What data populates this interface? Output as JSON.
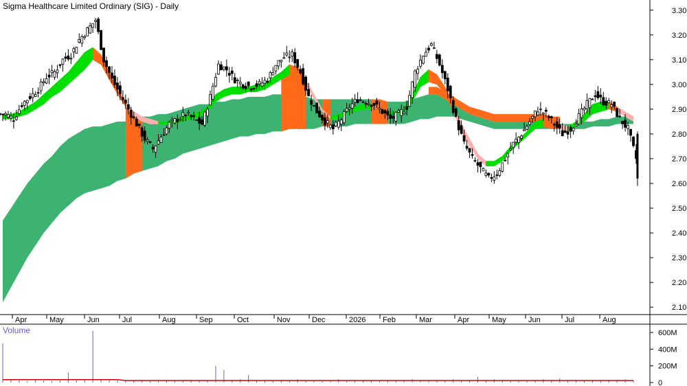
{
  "chart_data": {
    "type": "candlestick",
    "title": "Sigma Healthcare Limited Ordinary (SIG) - Daily",
    "price_axis": {
      "ylim": [
        2.07,
        3.33
      ],
      "ticks": [
        "3.30",
        "3.20",
        "3.10",
        "3.00",
        "2.90",
        "2.80",
        "2.70",
        "2.60",
        "2.50",
        "2.40",
        "2.30",
        "2.20",
        "2.10"
      ],
      "tick_values": [
        3.3,
        3.2,
        3.1,
        3.0,
        2.9,
        2.8,
        2.7,
        2.6,
        2.5,
        2.4,
        2.3,
        2.2,
        2.1
      ]
    },
    "x_axis": {
      "labels": [
        "Apr",
        "May",
        "Jun",
        "Jul",
        "Aug",
        "Sep",
        "Oct",
        "Nov",
        "Dec",
        "2026",
        "Feb",
        "Mar",
        "Apr",
        "May",
        "Jun",
        "Jul",
        "Aug"
      ]
    },
    "price_series": {
      "name": "Close",
      "values": [
        2.88,
        2.86,
        2.92,
        2.95,
        2.98,
        3.03,
        3.05,
        3.1,
        3.12,
        3.18,
        3.22,
        3.26,
        3.1,
        3.02,
        2.96,
        2.9,
        2.84,
        2.78,
        2.74,
        2.79,
        2.84,
        2.86,
        2.88,
        2.86,
        2.84,
        2.95,
        3.08,
        3.06,
        3.02,
        3.0,
        2.99,
        3.0,
        3.02,
        3.08,
        3.11,
        3.12,
        3.05,
        2.95,
        2.89,
        2.85,
        2.82,
        2.86,
        2.91,
        2.94,
        2.93,
        2.92,
        2.89,
        2.86,
        2.88,
        2.91,
        3.05,
        3.12,
        3.16,
        3.08,
        2.98,
        2.86,
        2.76,
        2.7,
        2.66,
        2.62,
        2.64,
        2.7,
        2.76,
        2.8,
        2.85,
        2.9,
        2.88,
        2.84,
        2.8,
        2.82,
        2.87,
        2.92,
        2.96,
        2.93,
        2.92,
        2.86,
        2.82,
        2.7
      ]
    },
    "short_ema_band": {
      "upper": [
        2.88,
        2.88,
        2.89,
        2.91,
        2.93,
        2.96,
        2.99,
        3.02,
        3.05,
        3.09,
        3.13,
        3.15,
        3.12,
        3.05,
        2.98,
        2.93,
        2.89,
        2.87,
        2.86,
        2.85,
        2.85,
        2.86,
        2.87,
        2.88,
        2.89,
        2.91,
        2.96,
        2.98,
        2.99,
        2.99,
        2.99,
        3.0,
        3.0,
        3.03,
        3.05,
        3.08,
        3.07,
        3.02,
        2.96,
        2.9,
        2.87,
        2.88,
        2.89,
        2.91,
        2.92,
        2.92,
        2.91,
        2.89,
        2.89,
        2.9,
        2.96,
        3.03,
        3.06,
        3.04,
        2.99,
        2.92,
        2.84,
        2.78,
        2.72,
        2.69,
        2.69,
        2.71,
        2.75,
        2.78,
        2.81,
        2.85,
        2.86,
        2.85,
        2.84,
        2.83,
        2.85,
        2.88,
        2.92,
        2.93,
        2.93,
        2.91,
        2.89,
        2.87
      ],
      "lower": [
        2.86,
        2.86,
        2.87,
        2.88,
        2.9,
        2.92,
        2.95,
        2.97,
        3.0,
        3.03,
        3.06,
        3.1,
        3.08,
        3.02,
        2.96,
        2.91,
        2.87,
        2.85,
        2.84,
        2.84,
        2.84,
        2.84,
        2.85,
        2.86,
        2.87,
        2.89,
        2.93,
        2.95,
        2.96,
        2.96,
        2.97,
        2.97,
        2.98,
        3.0,
        3.02,
        3.04,
        3.04,
        3.0,
        2.94,
        2.89,
        2.86,
        2.86,
        2.88,
        2.89,
        2.9,
        2.9,
        2.89,
        2.88,
        2.88,
        2.89,
        2.93,
        2.99,
        3.01,
        3.0,
        2.96,
        2.89,
        2.81,
        2.75,
        2.7,
        2.67,
        2.67,
        2.69,
        2.73,
        2.76,
        2.79,
        2.82,
        2.83,
        2.82,
        2.82,
        2.81,
        2.83,
        2.85,
        2.88,
        2.89,
        2.9,
        2.89,
        2.87,
        2.85
      ]
    },
    "long_ema_band": {
      "upper": [
        2.45,
        2.5,
        2.55,
        2.6,
        2.64,
        2.68,
        2.71,
        2.75,
        2.78,
        2.8,
        2.82,
        2.83,
        2.83,
        2.84,
        2.85,
        2.85,
        2.86,
        2.87,
        2.87,
        2.88,
        2.88,
        2.89,
        2.9,
        2.91,
        2.92,
        2.92,
        2.93,
        2.93,
        2.94,
        2.94,
        2.95,
        2.95,
        2.95,
        2.96,
        2.96,
        2.96,
        2.96,
        2.95,
        2.94,
        2.94,
        2.94,
        2.94,
        2.94,
        2.94,
        2.94,
        2.94,
        2.94,
        2.93,
        2.93,
        2.93,
        2.94,
        2.95,
        2.96,
        2.96,
        2.94,
        2.92,
        2.9,
        2.88,
        2.87,
        2.86,
        2.85,
        2.85,
        2.85,
        2.85,
        2.85,
        2.85,
        2.85,
        2.84,
        2.84,
        2.84,
        2.84,
        2.85,
        2.85,
        2.86,
        2.86,
        2.87,
        2.87,
        2.87
      ],
      "lower": [
        2.12,
        2.18,
        2.24,
        2.3,
        2.35,
        2.4,
        2.44,
        2.48,
        2.51,
        2.54,
        2.56,
        2.57,
        2.58,
        2.59,
        2.61,
        2.62,
        2.64,
        2.65,
        2.66,
        2.67,
        2.69,
        2.7,
        2.72,
        2.73,
        2.74,
        2.75,
        2.76,
        2.77,
        2.78,
        2.79,
        2.79,
        2.8,
        2.8,
        2.81,
        2.81,
        2.82,
        2.82,
        2.82,
        2.82,
        2.83,
        2.83,
        2.83,
        2.83,
        2.84,
        2.84,
        2.84,
        2.84,
        2.84,
        2.84,
        2.84,
        2.85,
        2.86,
        2.86,
        2.87,
        2.87,
        2.87,
        2.86,
        2.85,
        2.84,
        2.83,
        2.82,
        2.82,
        2.82,
        2.82,
        2.82,
        2.82,
        2.82,
        2.82,
        2.82,
        2.82,
        2.82,
        2.82,
        2.83,
        2.83,
        2.83,
        2.84,
        2.84,
        2.84
      ]
    },
    "volume_axis": {
      "ticks": [
        "600M",
        "400M",
        "200M",
        "0"
      ],
      "tick_values": [
        600,
        400,
        200,
        0
      ],
      "label": "Volume",
      "ylim": [
        0,
        650
      ]
    },
    "volume_series": {
      "name": "Volume",
      "values": [
        470,
        30,
        25,
        20,
        30,
        25,
        20,
        25,
        120,
        25,
        40,
        620,
        40,
        30,
        25,
        20,
        30,
        25,
        20,
        15,
        25,
        20,
        30,
        25,
        20,
        25,
        200,
        150,
        30,
        40,
        90,
        25,
        30,
        20,
        25,
        20,
        40,
        25,
        20,
        30,
        20,
        40,
        20,
        25,
        30,
        20,
        25,
        20,
        30,
        25,
        40,
        25,
        30,
        20,
        25,
        40,
        30,
        25,
        70,
        25,
        40,
        30,
        25,
        20,
        30,
        25,
        40,
        30,
        50,
        25,
        30,
        20,
        25,
        30,
        20,
        25,
        40,
        30
      ]
    },
    "colors": {
      "bull_short": "#00e000",
      "bear_short": "#ff6a1a",
      "bear_short_light": "#ffb0b0",
      "long_band": "#3cb371",
      "long_band_bear": "#ff6a1a",
      "candle": "#000000",
      "volume_bar": "#6a5acd",
      "volume_avg": "#cc0000",
      "grid": "#000000"
    }
  }
}
